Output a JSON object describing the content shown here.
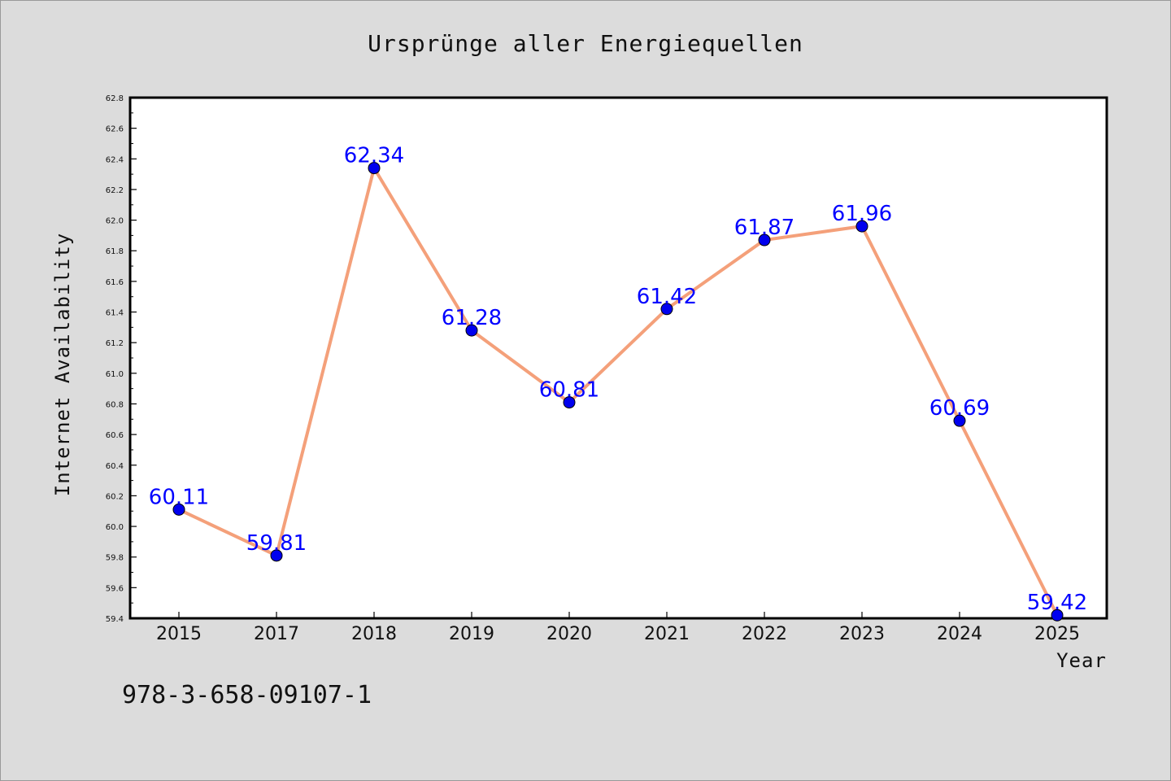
{
  "chart_data": {
    "type": "line",
    "title": "Ursprünge aller Energiequellen",
    "xlabel": "Year",
    "ylabel": "Internet Availability",
    "categories": [
      "2015",
      "2017",
      "2018",
      "2019",
      "2020",
      "2021",
      "2022",
      "2023",
      "2024",
      "2025"
    ],
    "series": [
      {
        "values": [
          60.11,
          59.81,
          62.34,
          61.28,
          60.81,
          61.42,
          61.87,
          61.96,
          60.69,
          59.42
        ],
        "labels": [
          "60.11",
          "59.81",
          "62.34",
          "61.28",
          "60.81",
          "61.42",
          "61.87",
          "61.96",
          "60.69",
          "59.42"
        ],
        "line_color": "#f4a07a",
        "marker_color": "#0000ee"
      }
    ],
    "ylim": [
      59.4,
      62.8
    ],
    "yticks": [
      "59.4",
      "59.6",
      "59.8",
      "60.0",
      "60.2",
      "60.4",
      "60.6",
      "60.8",
      "61.0",
      "61.2",
      "61.4",
      "61.6",
      "61.8",
      "62.0",
      "62.2",
      "62.4",
      "62.6",
      "62.8"
    ],
    "grid": false,
    "legend": "none"
  },
  "footer": {
    "isbn": "978-3-658-09107-1"
  }
}
